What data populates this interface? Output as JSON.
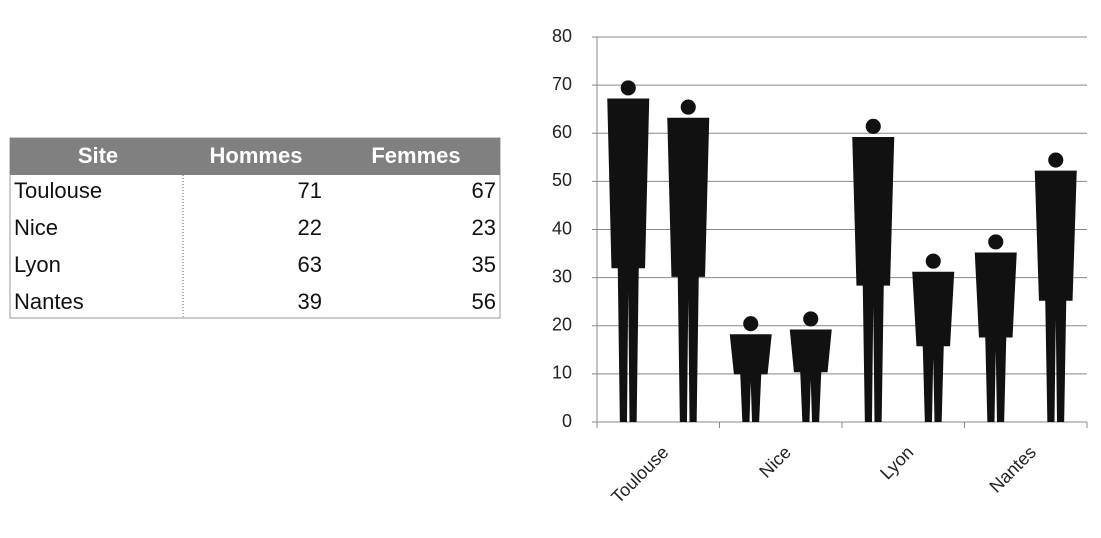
{
  "table": {
    "columns": [
      "Site",
      "Hommes",
      "Femmes"
    ],
    "rows": [
      [
        "Toulouse",
        71,
        67
      ],
      [
        "Nice",
        22,
        23
      ],
      [
        "Lyon",
        63,
        35
      ],
      [
        "Nantes",
        39,
        56
      ]
    ]
  },
  "chart_data": {
    "type": "pictograph",
    "categories": [
      "Toulouse",
      "Nice",
      "Lyon",
      "Nantes"
    ],
    "series": [
      {
        "color": "#111111",
        "values": [
          71,
          22,
          63,
          39
        ]
      },
      {
        "color": "#111111",
        "values": [
          67,
          23,
          35,
          56
        ]
      }
    ],
    "ylim": [
      0,
      80
    ],
    "yticks": [
      0,
      10,
      20,
      30,
      40,
      50,
      60,
      70,
      80
    ],
    "grid": true
  }
}
